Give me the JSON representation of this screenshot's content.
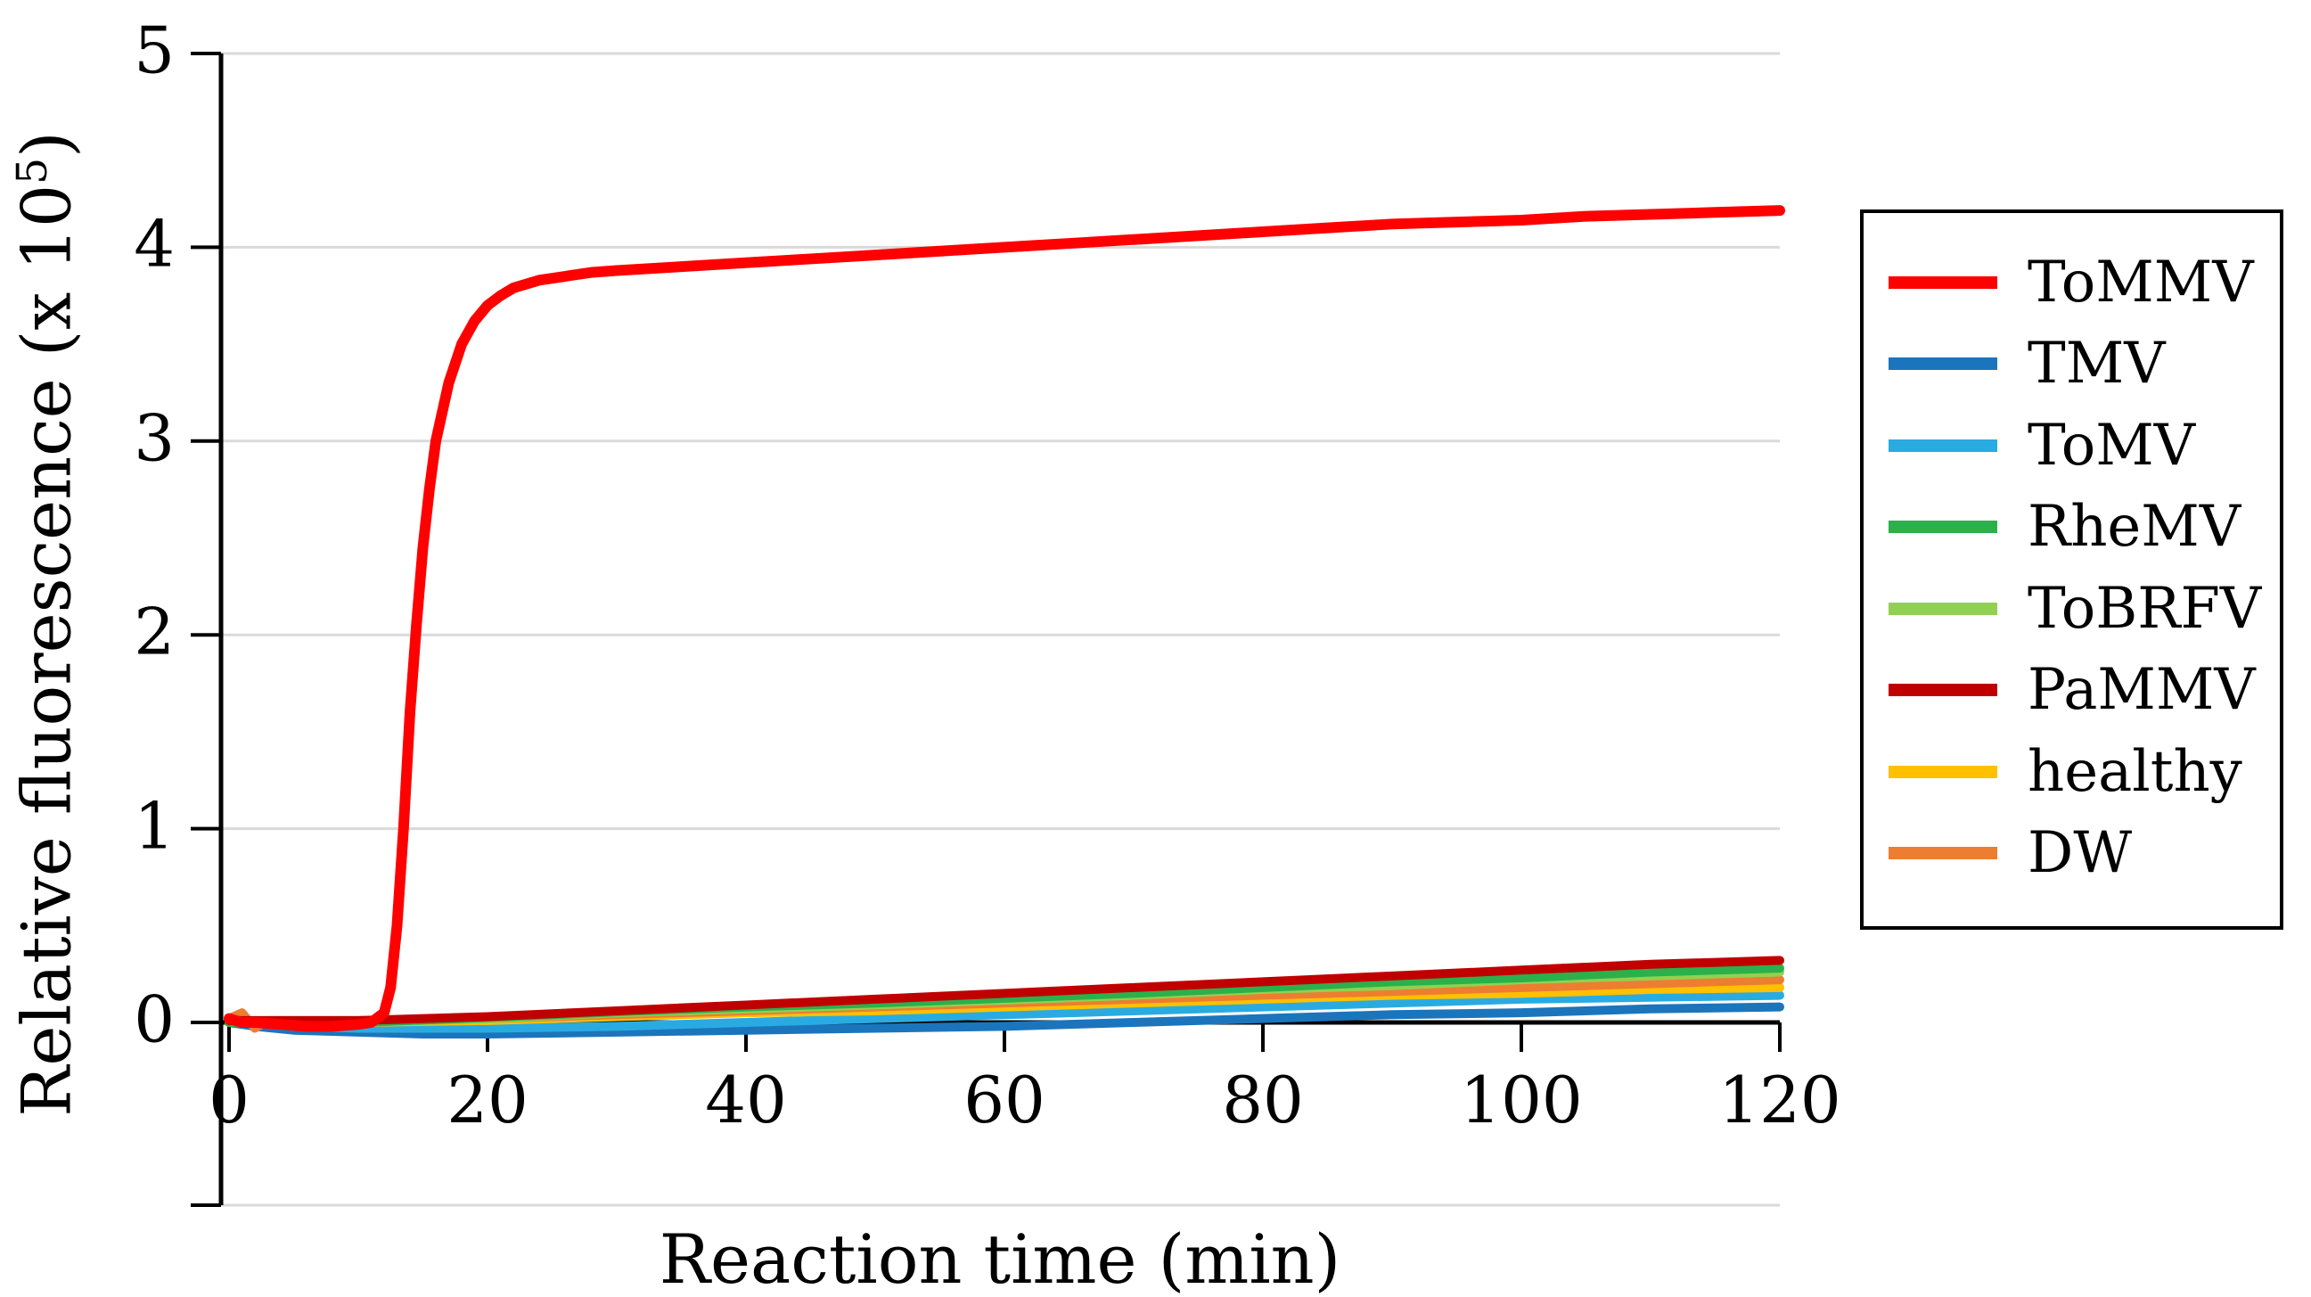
{
  "figure": {
    "x_axis": {
      "title": "Reaction time (min)"
    },
    "y_axis": {
      "title_main": "Relative fluorescence (x 10",
      "title_sup": "5",
      "title_close": ")"
    }
  },
  "chart_data": {
    "type": "line",
    "title": "",
    "xlabel": "Reaction time (min)",
    "ylabel": "Relative fluorescence (x 10^5)",
    "xlim": [
      0,
      120
    ],
    "ylim": [
      -0.95,
      5
    ],
    "grid": true,
    "legend_position": "outside-right",
    "x_ticks": [
      0,
      20,
      40,
      60,
      80,
      100,
      120
    ],
    "x_tick_labels": [
      "0",
      "20",
      "40",
      "60",
      "80",
      "100",
      "120"
    ],
    "y_ticks": [
      5,
      4,
      3,
      2,
      1,
      0
    ],
    "y_tick_labels": [
      "5",
      "4",
      "3",
      "2",
      "1",
      "0"
    ],
    "series": [
      {
        "name": "ToMMV",
        "color": "#FF0000",
        "points": [
          [
            0,
            0.02
          ],
          [
            1,
            0.0
          ],
          [
            2,
            0.0
          ],
          [
            4,
            -0.01
          ],
          [
            6,
            -0.02
          ],
          [
            8,
            -0.02
          ],
          [
            10,
            -0.01
          ],
          [
            11,
            0.0
          ],
          [
            12,
            0.05
          ],
          [
            12.5,
            0.18
          ],
          [
            13,
            0.5
          ],
          [
            13.5,
            1.0
          ],
          [
            14,
            1.6
          ],
          [
            14.5,
            2.05
          ],
          [
            15,
            2.45
          ],
          [
            15.5,
            2.75
          ],
          [
            16,
            3.0
          ],
          [
            17,
            3.3
          ],
          [
            18,
            3.5
          ],
          [
            19,
            3.62
          ],
          [
            20,
            3.7
          ],
          [
            21,
            3.75
          ],
          [
            22,
            3.79
          ],
          [
            24,
            3.83
          ],
          [
            26,
            3.85
          ],
          [
            28,
            3.87
          ],
          [
            30,
            3.88
          ],
          [
            35,
            3.9
          ],
          [
            40,
            3.92
          ],
          [
            45,
            3.94
          ],
          [
            50,
            3.96
          ],
          [
            55,
            3.98
          ],
          [
            60,
            4.0
          ],
          [
            65,
            4.02
          ],
          [
            70,
            4.04
          ],
          [
            75,
            4.06
          ],
          [
            80,
            4.08
          ],
          [
            85,
            4.1
          ],
          [
            90,
            4.12
          ],
          [
            95,
            4.13
          ],
          [
            100,
            4.14
          ],
          [
            105,
            4.16
          ],
          [
            110,
            4.17
          ],
          [
            115,
            4.18
          ],
          [
            120,
            4.19
          ]
        ]
      },
      {
        "name": "TMV",
        "color": "#1B75BC",
        "points": [
          [
            0,
            0.0
          ],
          [
            2,
            -0.02
          ],
          [
            5,
            -0.04
          ],
          [
            10,
            -0.05
          ],
          [
            15,
            -0.06
          ],
          [
            20,
            -0.06
          ],
          [
            30,
            -0.05
          ],
          [
            40,
            -0.04
          ],
          [
            50,
            -0.03
          ],
          [
            60,
            -0.02
          ],
          [
            70,
            0.0
          ],
          [
            80,
            0.02
          ],
          [
            90,
            0.04
          ],
          [
            100,
            0.05
          ],
          [
            110,
            0.07
          ],
          [
            120,
            0.08
          ]
        ]
      },
      {
        "name": "ToMV",
        "color": "#29ABE2",
        "points": [
          [
            0,
            0.01
          ],
          [
            5,
            -0.02
          ],
          [
            10,
            -0.03
          ],
          [
            20,
            -0.03
          ],
          [
            30,
            -0.02
          ],
          [
            40,
            0.0
          ],
          [
            50,
            0.02
          ],
          [
            60,
            0.04
          ],
          [
            70,
            0.06
          ],
          [
            80,
            0.08
          ],
          [
            90,
            0.1
          ],
          [
            100,
            0.12
          ],
          [
            110,
            0.13
          ],
          [
            120,
            0.14
          ]
        ]
      },
      {
        "name": "RheMV",
        "color": "#2CB04B",
        "points": [
          [
            0,
            0.0
          ],
          [
            10,
            0.0
          ],
          [
            20,
            0.025
          ],
          [
            30,
            0.055
          ],
          [
            40,
            0.08
          ],
          [
            50,
            0.1
          ],
          [
            60,
            0.125
          ],
          [
            70,
            0.15
          ],
          [
            80,
            0.18
          ],
          [
            90,
            0.21
          ],
          [
            100,
            0.23
          ],
          [
            110,
            0.26
          ],
          [
            120,
            0.28
          ]
        ]
      },
      {
        "name": "ToBRFV",
        "color": "#92D050",
        "points": [
          [
            0,
            0.0
          ],
          [
            10,
            0.0
          ],
          [
            20,
            0.02
          ],
          [
            30,
            0.05
          ],
          [
            40,
            0.07
          ],
          [
            50,
            0.09
          ],
          [
            60,
            0.115
          ],
          [
            70,
            0.14
          ],
          [
            80,
            0.17
          ],
          [
            90,
            0.19
          ],
          [
            100,
            0.22
          ],
          [
            110,
            0.24
          ],
          [
            120,
            0.26
          ]
        ]
      },
      {
        "name": "PaMMV",
        "color": "#C00000",
        "points": [
          [
            0,
            0.01
          ],
          [
            10,
            0.01
          ],
          [
            20,
            0.03
          ],
          [
            30,
            0.06
          ],
          [
            40,
            0.09
          ],
          [
            50,
            0.12
          ],
          [
            60,
            0.15
          ],
          [
            70,
            0.18
          ],
          [
            80,
            0.21
          ],
          [
            90,
            0.24
          ],
          [
            100,
            0.27
          ],
          [
            110,
            0.3
          ],
          [
            120,
            0.32
          ]
        ]
      },
      {
        "name": "healthy",
        "color": "#FFC000",
        "points": [
          [
            0,
            0.0
          ],
          [
            10,
            0.0
          ],
          [
            20,
            0.01
          ],
          [
            30,
            0.03
          ],
          [
            40,
            0.05
          ],
          [
            50,
            0.06
          ],
          [
            60,
            0.08
          ],
          [
            70,
            0.1
          ],
          [
            80,
            0.12
          ],
          [
            90,
            0.14
          ],
          [
            100,
            0.15
          ],
          [
            110,
            0.17
          ],
          [
            120,
            0.18
          ]
        ]
      },
      {
        "name": "DW",
        "color": "#ED7D31",
        "points": [
          [
            0,
            0.02
          ],
          [
            1,
            0.05
          ],
          [
            2,
            -0.03
          ],
          [
            3,
            0.01
          ],
          [
            5,
            0.01
          ],
          [
            10,
            0.01
          ],
          [
            20,
            0.02
          ],
          [
            30,
            0.04
          ],
          [
            40,
            0.06
          ],
          [
            50,
            0.08
          ],
          [
            60,
            0.1
          ],
          [
            70,
            0.12
          ],
          [
            80,
            0.14
          ],
          [
            90,
            0.16
          ],
          [
            100,
            0.18
          ],
          [
            110,
            0.2
          ],
          [
            120,
            0.22
          ]
        ]
      }
    ]
  }
}
